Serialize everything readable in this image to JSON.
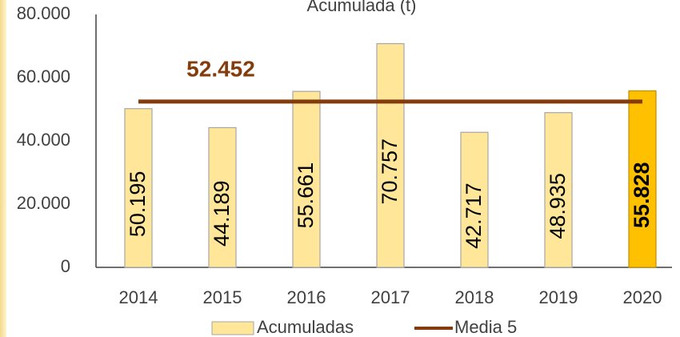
{
  "chart_data": {
    "type": "bar",
    "title": "Acumulada (t)",
    "categories": [
      "2014",
      "2015",
      "2016",
      "2017",
      "2018",
      "2019",
      "2020"
    ],
    "series": [
      {
        "name": "Acumuladas",
        "color": "#ffe699",
        "colors": [
          "#ffe699",
          "#ffe699",
          "#ffe699",
          "#ffe699",
          "#ffe699",
          "#ffe699",
          "#ffc000"
        ],
        "values": [
          50195,
          44189,
          55661,
          70757,
          42717,
          48935,
          55828
        ],
        "value_labels": [
          "50.195",
          "44.189",
          "55.661",
          "70.757",
          "42.717",
          "48.935",
          "55.828"
        ]
      }
    ],
    "average": {
      "name": "Media 5",
      "color": "#843c0c",
      "value": 52452,
      "label": "52.452"
    },
    "ylim": [
      0,
      80000
    ],
    "yticks": [
      0,
      {
        "value": 20000,
        "label": "20.000"
      },
      {
        "value": 40000,
        "label": "40.000"
      },
      {
        "value": 60000,
        "label": "60.000"
      },
      {
        "value": 80000,
        "label": "80.000"
      }
    ]
  }
}
